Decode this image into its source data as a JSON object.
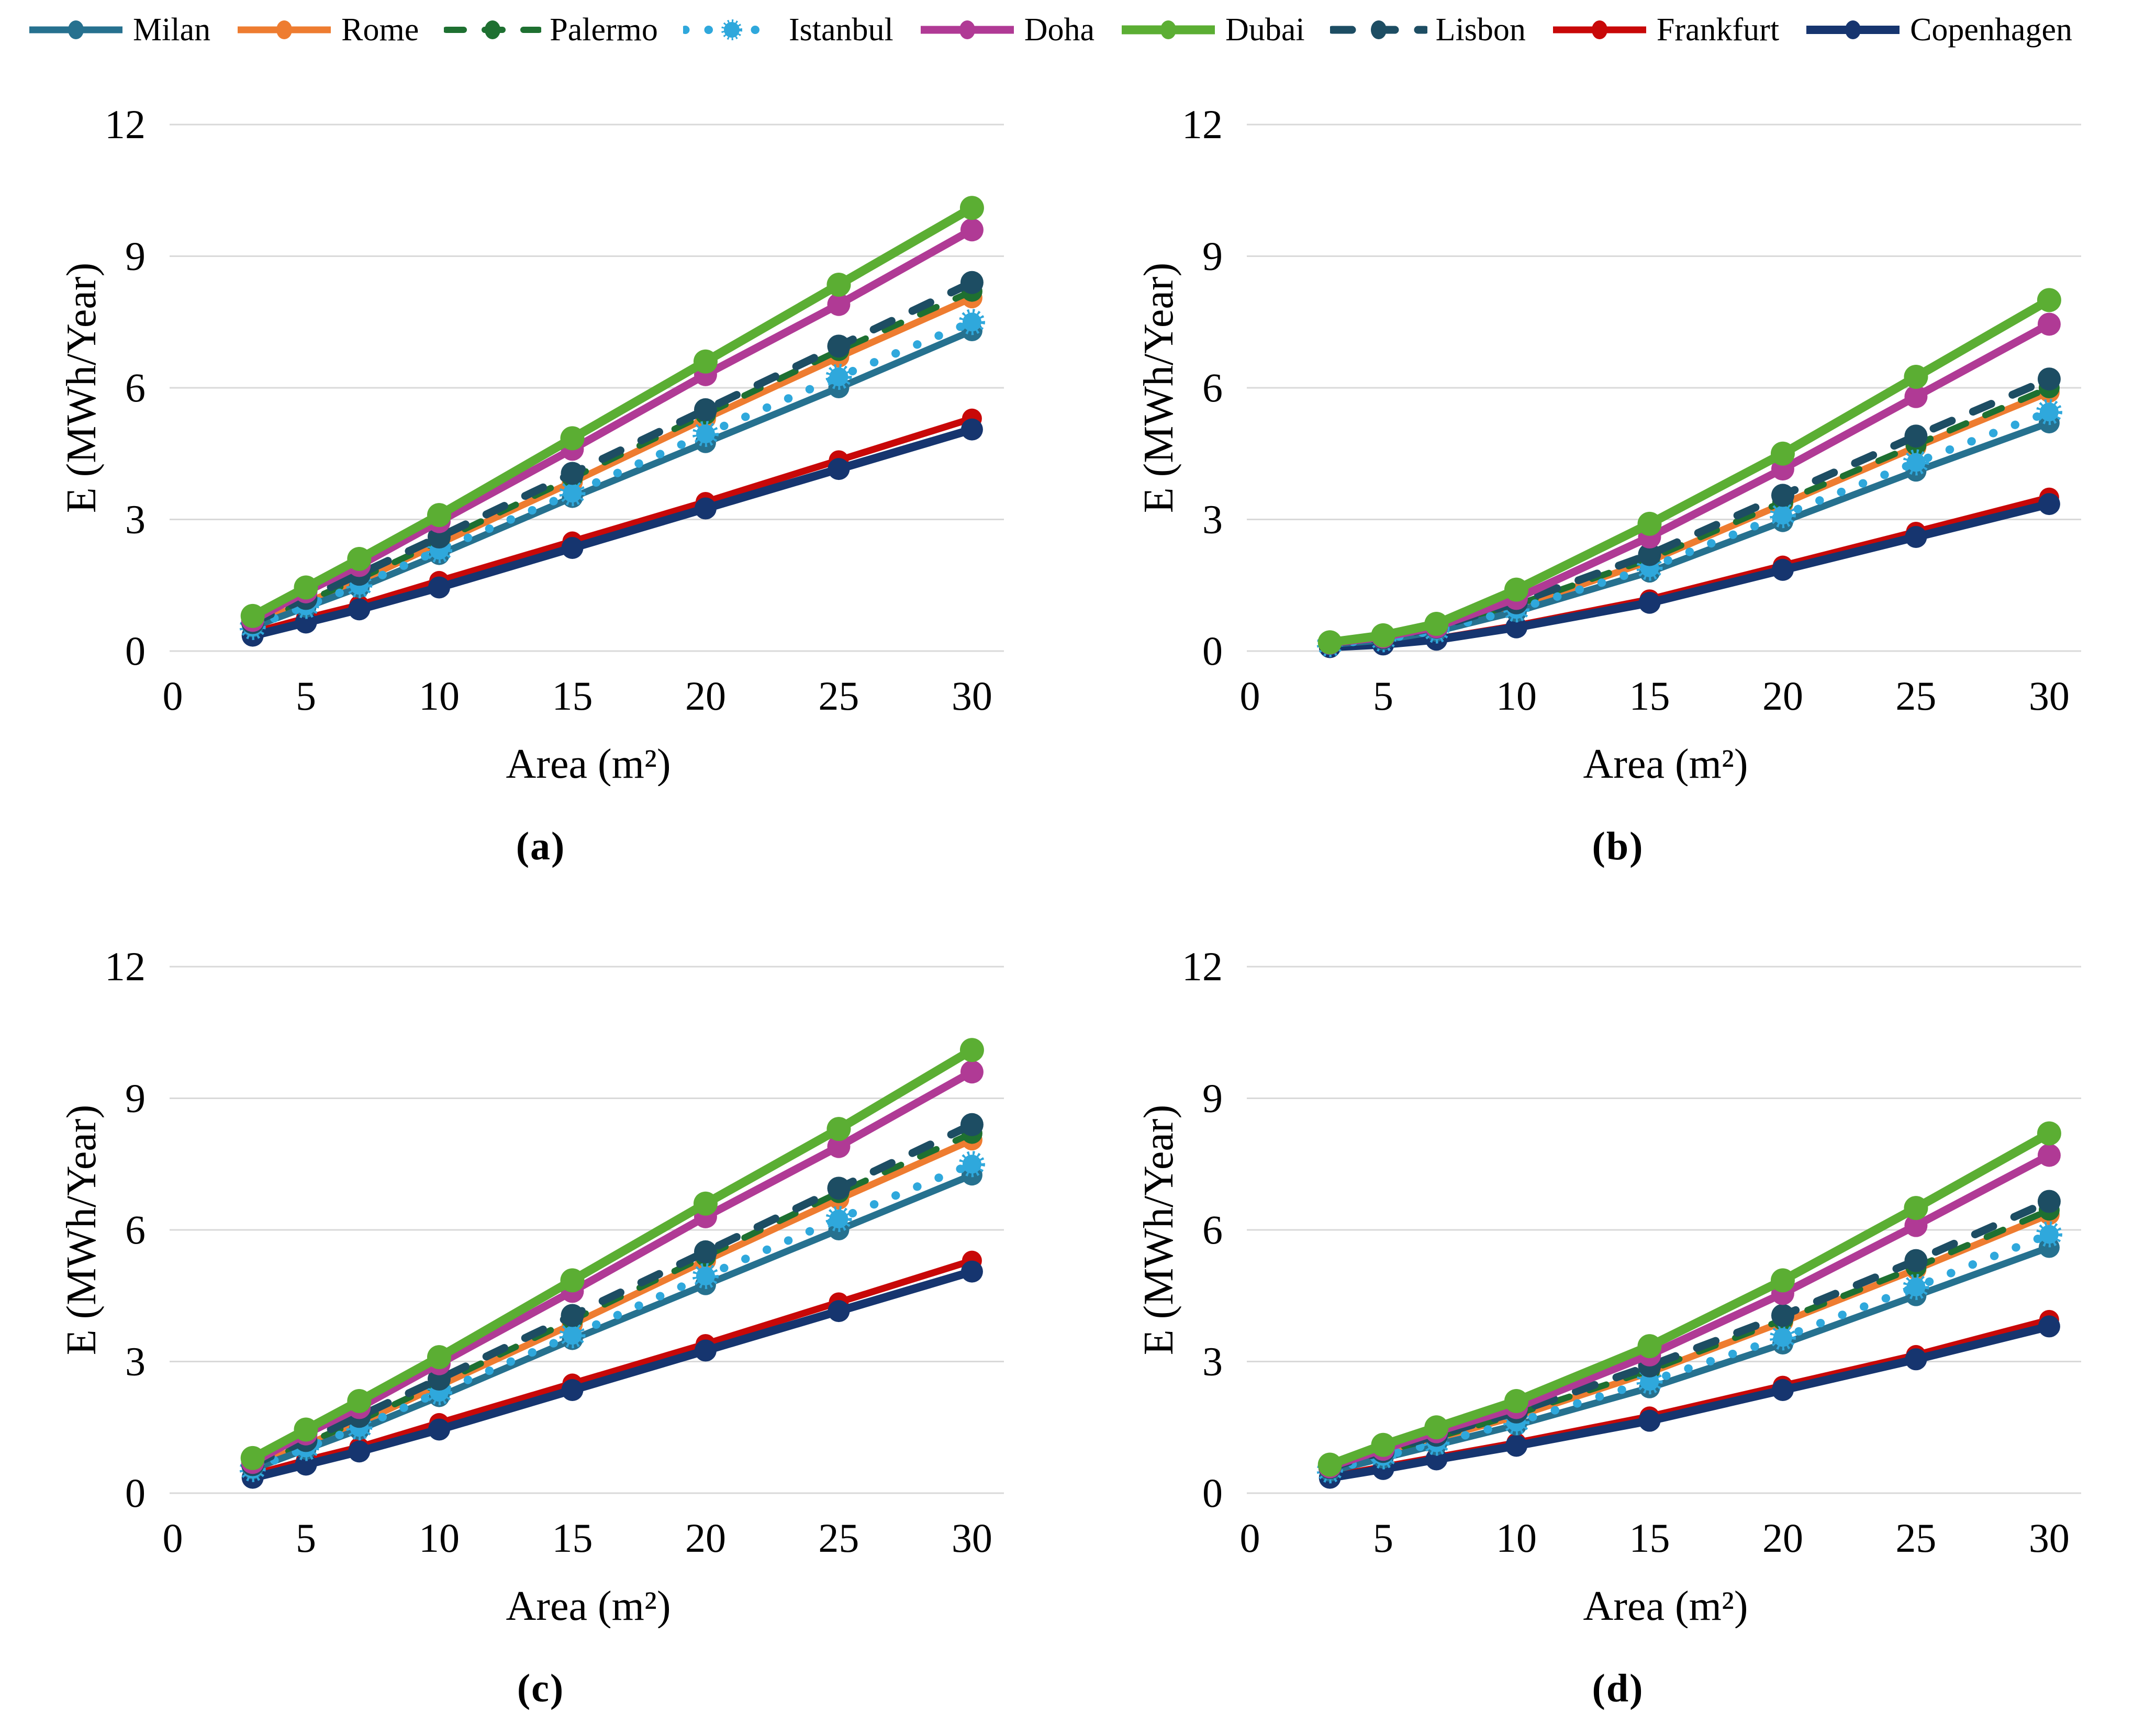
{
  "figure": {
    "background": "#FFFFFF",
    "grid_color": "#D9D9D9"
  },
  "legend": {
    "items": [
      {
        "label": "Milan",
        "color": "#26718F",
        "line_style": "solid",
        "marker": "circle"
      },
      {
        "label": "Rome",
        "color": "#EE7C30",
        "line_style": "solid",
        "marker": "circle"
      },
      {
        "label": "Palermo",
        "color": "#1E7031",
        "line_style": "dashed",
        "marker": "circle"
      },
      {
        "label": "Istanbul",
        "color": "#2FA8DC",
        "line_style": "dotted",
        "marker": "burst"
      },
      {
        "label": "Doha",
        "color": "#B03A95",
        "line_style": "solid",
        "marker": "circle"
      },
      {
        "label": "Dubai",
        "color": "#5BAE33",
        "line_style": "solid",
        "marker": "circle"
      },
      {
        "label": "Lisbon",
        "color": "#1D4D63",
        "line_style": "dashed",
        "marker": "circle"
      },
      {
        "label": "Frankfurt",
        "color": "#C80808",
        "line_style": "solid",
        "marker": "circle"
      },
      {
        "label": "Copenhagen",
        "color": "#16356F",
        "line_style": "solid",
        "marker": "circle"
      }
    ]
  },
  "axes": {
    "xlabel": "Area (m²)",
    "ylabel": "E (MWh/Year)",
    "xticks": [
      0,
      5,
      10,
      15,
      20,
      25,
      30
    ],
    "yticks": [
      0,
      3,
      6,
      9,
      12
    ],
    "xlim": [
      0,
      31.2
    ],
    "ylim": [
      0,
      12
    ],
    "grid": true,
    "legend_position": "top"
  },
  "chart_data": [
    {
      "id": "a",
      "label": "(a)",
      "type": "line",
      "xlabel": "Area (m²)",
      "ylabel": "E (MWh/Year)",
      "x": [
        3,
        5,
        7,
        10,
        15,
        20,
        25,
        30
      ],
      "series": [
        {
          "name": "Milan",
          "values": [
            0.55,
            1.0,
            1.45,
            2.2,
            3.5,
            4.75,
            6.0,
            7.3
          ]
        },
        {
          "name": "Rome",
          "values": [
            0.6,
            1.1,
            1.6,
            2.45,
            3.85,
            5.3,
            6.7,
            8.05
          ]
        },
        {
          "name": "Palermo",
          "values": [
            0.62,
            1.13,
            1.65,
            2.5,
            3.95,
            5.4,
            6.85,
            8.2
          ]
        },
        {
          "name": "Istanbul",
          "values": [
            0.55,
            1.03,
            1.5,
            2.3,
            3.6,
            4.95,
            6.25,
            7.5
          ]
        },
        {
          "name": "Doha",
          "values": [
            0.7,
            1.35,
            1.95,
            2.95,
            4.6,
            6.3,
            7.9,
            9.6
          ]
        },
        {
          "name": "Dubai",
          "values": [
            0.8,
            1.45,
            2.1,
            3.1,
            4.85,
            6.6,
            8.35,
            10.1
          ]
        },
        {
          "name": "Lisbon",
          "values": [
            0.65,
            1.2,
            1.75,
            2.6,
            4.05,
            5.5,
            6.95,
            8.4
          ]
        },
        {
          "name": "Frankfurt",
          "values": [
            0.42,
            0.75,
            1.05,
            1.6,
            2.5,
            3.4,
            4.35,
            5.3
          ]
        },
        {
          "name": "Copenhagen",
          "values": [
            0.35,
            0.65,
            0.95,
            1.45,
            2.35,
            3.25,
            4.15,
            5.05
          ]
        }
      ]
    },
    {
      "id": "b",
      "label": "(b)",
      "type": "line",
      "xlabel": "Area (m²)",
      "ylabel": "E (MWh/Year)",
      "x": [
        3,
        5,
        7,
        10,
        15,
        20,
        25,
        30
      ],
      "series": [
        {
          "name": "Milan",
          "values": [
            0.15,
            0.25,
            0.45,
            0.9,
            1.8,
            2.95,
            4.1,
            5.2
          ]
        },
        {
          "name": "Rome",
          "values": [
            0.17,
            0.28,
            0.5,
            1.0,
            2.05,
            3.35,
            4.65,
            5.9
          ]
        },
        {
          "name": "Palermo",
          "values": [
            0.17,
            0.29,
            0.52,
            1.05,
            2.1,
            3.4,
            4.7,
            6.0
          ]
        },
        {
          "name": "Istanbul",
          "values": [
            0.16,
            0.27,
            0.47,
            0.95,
            1.9,
            3.1,
            4.3,
            5.45
          ]
        },
        {
          "name": "Doha",
          "values": [
            0.18,
            0.32,
            0.55,
            1.2,
            2.6,
            4.15,
            5.8,
            7.45
          ]
        },
        {
          "name": "Dubai",
          "values": [
            0.2,
            0.36,
            0.62,
            1.4,
            2.9,
            4.5,
            6.25,
            8.0
          ]
        },
        {
          "name": "Lisbon",
          "values": [
            0.18,
            0.3,
            0.54,
            1.1,
            2.2,
            3.55,
            4.9,
            6.2
          ]
        },
        {
          "name": "Frankfurt",
          "values": [
            0.1,
            0.16,
            0.28,
            0.58,
            1.18,
            1.95,
            2.72,
            3.5
          ]
        },
        {
          "name": "Copenhagen",
          "values": [
            0.09,
            0.15,
            0.26,
            0.54,
            1.1,
            1.85,
            2.6,
            3.35
          ]
        }
      ]
    },
    {
      "id": "c",
      "label": "(c)",
      "type": "line",
      "xlabel": "Area (m²)",
      "ylabel": "E (MWh/Year)",
      "x": [
        3,
        5,
        7,
        10,
        15,
        20,
        25,
        30
      ],
      "series": [
        {
          "name": "Milan",
          "values": [
            0.55,
            1.0,
            1.45,
            2.2,
            3.5,
            4.75,
            6.0,
            7.25
          ]
        },
        {
          "name": "Rome",
          "values": [
            0.6,
            1.1,
            1.6,
            2.45,
            3.85,
            5.3,
            6.7,
            8.05
          ]
        },
        {
          "name": "Palermo",
          "values": [
            0.62,
            1.13,
            1.65,
            2.5,
            3.95,
            5.4,
            6.85,
            8.2
          ]
        },
        {
          "name": "Istanbul",
          "values": [
            0.55,
            1.03,
            1.5,
            2.3,
            3.6,
            4.95,
            6.25,
            7.5
          ]
        },
        {
          "name": "Doha",
          "values": [
            0.7,
            1.35,
            1.95,
            2.95,
            4.6,
            6.3,
            7.9,
            9.6
          ]
        },
        {
          "name": "Dubai",
          "values": [
            0.8,
            1.45,
            2.1,
            3.1,
            4.85,
            6.6,
            8.3,
            10.1
          ]
        },
        {
          "name": "Lisbon",
          "values": [
            0.65,
            1.2,
            1.75,
            2.6,
            4.05,
            5.5,
            6.95,
            8.4
          ]
        },
        {
          "name": "Frankfurt",
          "values": [
            0.42,
            0.75,
            1.05,
            1.6,
            2.5,
            3.4,
            4.35,
            5.3
          ]
        },
        {
          "name": "Copenhagen",
          "values": [
            0.35,
            0.65,
            0.95,
            1.45,
            2.35,
            3.25,
            4.15,
            5.05
          ]
        }
      ]
    },
    {
      "id": "d",
      "label": "(d)",
      "type": "line",
      "xlabel": "Area (m²)",
      "ylabel": "E (MWh/Year)",
      "x": [
        3,
        5,
        7,
        10,
        15,
        20,
        25,
        30
      ],
      "series": [
        {
          "name": "Milan",
          "values": [
            0.5,
            0.8,
            1.1,
            1.55,
            2.4,
            3.4,
            4.5,
            5.6
          ]
        },
        {
          "name": "Rome",
          "values": [
            0.55,
            0.9,
            1.25,
            1.75,
            2.75,
            3.9,
            5.1,
            6.35
          ]
        },
        {
          "name": "Palermo",
          "values": [
            0.56,
            0.92,
            1.27,
            1.8,
            2.8,
            3.95,
            5.15,
            6.45
          ]
        },
        {
          "name": "Istanbul",
          "values": [
            0.52,
            0.84,
            1.15,
            1.62,
            2.55,
            3.55,
            4.7,
            5.9
          ]
        },
        {
          "name": "Doha",
          "values": [
            0.6,
            1.0,
            1.4,
            1.95,
            3.15,
            4.55,
            6.1,
            7.7
          ]
        },
        {
          "name": "Dubai",
          "values": [
            0.65,
            1.1,
            1.5,
            2.1,
            3.35,
            4.85,
            6.5,
            8.2
          ]
        },
        {
          "name": "Lisbon",
          "values": [
            0.58,
            0.95,
            1.32,
            1.85,
            2.9,
            4.05,
            5.3,
            6.65
          ]
        },
        {
          "name": "Frankfurt",
          "values": [
            0.38,
            0.6,
            0.82,
            1.15,
            1.75,
            2.45,
            3.15,
            3.95
          ]
        },
        {
          "name": "Copenhagen",
          "values": [
            0.35,
            0.55,
            0.77,
            1.08,
            1.65,
            2.35,
            3.05,
            3.8
          ]
        }
      ]
    }
  ]
}
